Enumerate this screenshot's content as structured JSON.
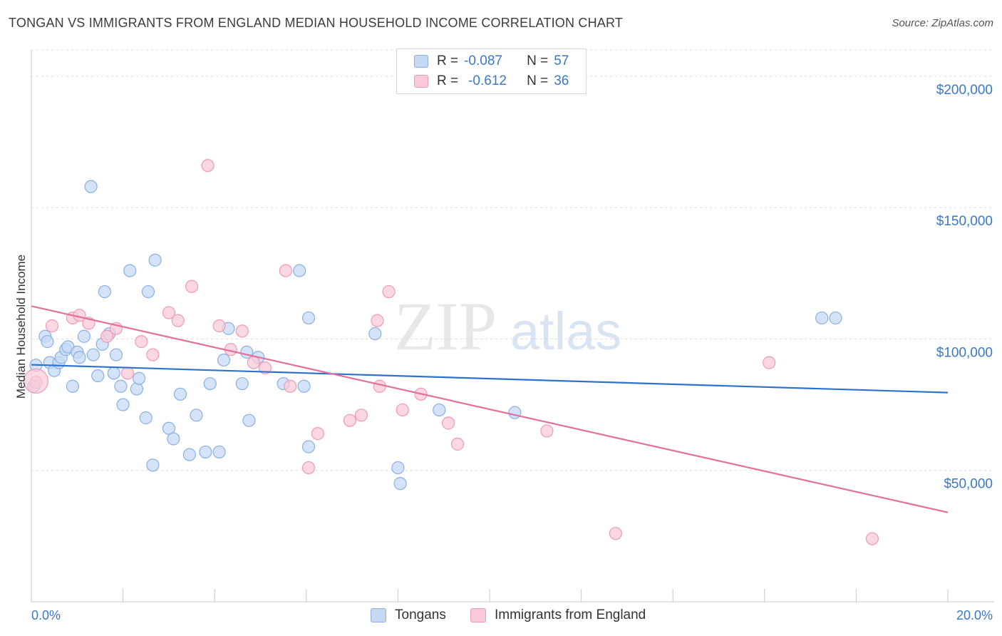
{
  "title": "TONGAN VS IMMIGRANTS FROM ENGLAND MEDIAN HOUSEHOLD INCOME CORRELATION CHART",
  "source": "Source: ZipAtlas.com",
  "watermark": {
    "zip": "ZIP",
    "atlas": "atlas"
  },
  "legend": {
    "rows": [
      {
        "r_label": "R =",
        "r_value": "-0.087",
        "n_label": "N =",
        "n_value": "57"
      },
      {
        "r_label": "R =",
        "r_value": "-0.612",
        "n_label": "N =",
        "n_value": "36"
      }
    ]
  },
  "bottom_legend": {
    "series1": "Tongans",
    "series2": "Immigrants from England"
  },
  "colors": {
    "blue_fill": "#c5d9f5",
    "blue_stroke": "#8ab0e3",
    "blue_line": "#2f72cc",
    "pink_fill": "#f9cad9",
    "pink_stroke": "#ee9ab6",
    "pink_line": "#e3709a",
    "tick_text": "#3a78c9",
    "grid": "#dcdcdc"
  },
  "chart_data": {
    "type": "scatter",
    "ylabel": "Median Household Income",
    "x_tick_labels": [
      "0.0%",
      "20.0%"
    ],
    "y_tick_labels": [
      "$50,000",
      "$100,000",
      "$150,000",
      "$200,000"
    ],
    "y_ticks": [
      50000,
      100000,
      150000,
      200000
    ],
    "xlim": [
      0,
      20
    ],
    "ylim": [
      0,
      210000
    ],
    "series": [
      {
        "name": "Tongans",
        "points": [
          [
            0.05,
            82000
          ],
          [
            0.1,
            90000
          ],
          [
            0.3,
            101000
          ],
          [
            0.35,
            99000
          ],
          [
            0.4,
            91000
          ],
          [
            0.5,
            88000
          ],
          [
            0.6,
            91000
          ],
          [
            0.65,
            93000
          ],
          [
            0.75,
            96000
          ],
          [
            0.8,
            97000
          ],
          [
            0.9,
            82000
          ],
          [
            1.0,
            95000
          ],
          [
            1.05,
            93000
          ],
          [
            1.15,
            101000
          ],
          [
            1.3,
            158000
          ],
          [
            1.35,
            94000
          ],
          [
            1.45,
            86000
          ],
          [
            1.55,
            98000
          ],
          [
            1.6,
            118000
          ],
          [
            1.7,
            102000
          ],
          [
            1.8,
            87000
          ],
          [
            1.85,
            94000
          ],
          [
            1.95,
            82000
          ],
          [
            2.0,
            75000
          ],
          [
            2.15,
            126000
          ],
          [
            2.3,
            81000
          ],
          [
            2.35,
            85000
          ],
          [
            2.5,
            70000
          ],
          [
            2.55,
            118000
          ],
          [
            2.65,
            52000
          ],
          [
            2.7,
            130000
          ],
          [
            3.0,
            66000
          ],
          [
            3.1,
            62000
          ],
          [
            3.25,
            79000
          ],
          [
            3.45,
            56000
          ],
          [
            3.6,
            71000
          ],
          [
            3.8,
            57000
          ],
          [
            3.9,
            83000
          ],
          [
            4.1,
            57000
          ],
          [
            4.2,
            92000
          ],
          [
            4.3,
            104000
          ],
          [
            4.6,
            83000
          ],
          [
            4.7,
            95000
          ],
          [
            4.75,
            69000
          ],
          [
            4.95,
            93000
          ],
          [
            5.5,
            83000
          ],
          [
            5.85,
            126000
          ],
          [
            5.95,
            82000
          ],
          [
            6.05,
            108000
          ],
          [
            6.05,
            59000
          ],
          [
            7.5,
            102000
          ],
          [
            8.0,
            51000
          ],
          [
            8.05,
            45000
          ],
          [
            8.9,
            73000
          ],
          [
            10.55,
            72000
          ],
          [
            17.25,
            108000
          ],
          [
            17.55,
            108000
          ]
        ],
        "trendline": {
          "x": [
            0,
            20
          ],
          "y": [
            90200,
            79600
          ]
        }
      },
      {
        "name": "Immigrants from England",
        "points": [
          [
            0.1,
            83500
          ],
          [
            0.45,
            105000
          ],
          [
            0.9,
            108000
          ],
          [
            1.05,
            109000
          ],
          [
            1.25,
            106000
          ],
          [
            1.65,
            101000
          ],
          [
            1.85,
            104000
          ],
          [
            2.1,
            87000
          ],
          [
            2.4,
            99000
          ],
          [
            2.65,
            94000
          ],
          [
            3.0,
            110000
          ],
          [
            3.2,
            107000
          ],
          [
            3.5,
            120000
          ],
          [
            3.85,
            166000
          ],
          [
            4.1,
            105000
          ],
          [
            4.35,
            96000
          ],
          [
            4.6,
            103000
          ],
          [
            4.85,
            91000
          ],
          [
            5.1,
            89000
          ],
          [
            5.55,
            126000
          ],
          [
            5.65,
            82000
          ],
          [
            6.05,
            51000
          ],
          [
            6.25,
            64000
          ],
          [
            6.95,
            69000
          ],
          [
            7.2,
            71000
          ],
          [
            7.55,
            107000
          ],
          [
            7.6,
            82000
          ],
          [
            7.8,
            118000
          ],
          [
            8.1,
            73000
          ],
          [
            8.5,
            79000
          ],
          [
            9.1,
            68000
          ],
          [
            9.3,
            60000
          ],
          [
            11.25,
            65000
          ],
          [
            12.75,
            26000
          ],
          [
            16.1,
            91000
          ],
          [
            18.35,
            24000
          ]
        ],
        "trendline": {
          "x": [
            0,
            20
          ],
          "y": [
            112500,
            34000
          ]
        }
      }
    ]
  }
}
